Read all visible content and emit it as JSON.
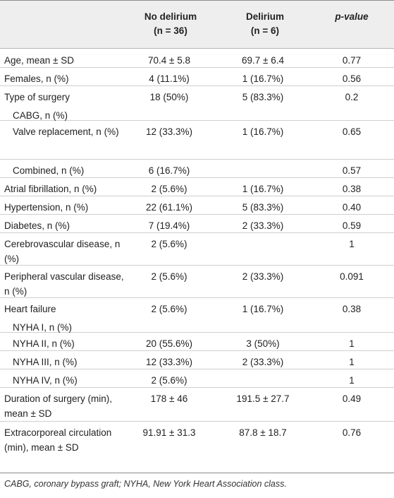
{
  "header": {
    "col1_name": "No delirium",
    "col1_n": "(n = 36)",
    "col2_name": "Delirium",
    "col2_n": "(n = 6)",
    "col3_name": "p-value"
  },
  "rows": [
    {
      "label": "Age, mean ± SD",
      "c1": "70.4 ± 5.8",
      "c2": "69.7 ± 6.4",
      "c3": "0.77"
    },
    {
      "label": "Females, n (%)",
      "c1": "4 (11.1%)",
      "c2": "1 (16.7%)",
      "c3": "0.56"
    },
    {
      "label": "Type of surgery",
      "c1": "18 (50%)",
      "c2": "5 (83.3%)",
      "c3": "0.2"
    },
    {
      "label": "CABG, n (%)",
      "c1": "",
      "c2": "",
      "c3": ""
    },
    {
      "label": "Valve replacement, n (%)",
      "c1": "12 (33.3%)",
      "c2": "1 (16.7%)",
      "c3": "0.65"
    },
    {
      "label": "Combined, n (%)",
      "c1": "6 (16.7%)",
      "c2": "",
      "c3": "0.57"
    },
    {
      "label": "Atrial fibrillation, n (%)",
      "c1": "2 (5.6%)",
      "c2": "1 (16.7%)",
      "c3": "0.38"
    },
    {
      "label": "Hypertension, n (%)",
      "c1": "22 (61.1%)",
      "c2": "5 (83.3%)",
      "c3": "0.40"
    },
    {
      "label": "Diabetes, n (%)",
      "c1": "7 (19.4%)",
      "c2": "2 (33.3%)",
      "c3": "0.59"
    },
    {
      "label": "Cerebrovascular disease, n (%)",
      "c1": "2 (5.6%)",
      "c2": "",
      "c3": "1"
    },
    {
      "label": "Peripheral vascular disease, n (%)",
      "c1": "2 (5.6%)",
      "c2": "2 (33.3%)",
      "c3": "0.091"
    },
    {
      "label": "Heart failure",
      "c1": "2 (5.6%)",
      "c2": "1 (16.7%)",
      "c3": "0.38"
    },
    {
      "label": "NYHA I, n (%)",
      "c1": "",
      "c2": "",
      "c3": ""
    },
    {
      "label": "NYHA II, n (%)",
      "c1": "20 (55.6%)",
      "c2": "3 (50%)",
      "c3": "1"
    },
    {
      "label": "NYHA III, n (%)",
      "c1": "12 (33.3%)",
      "c2": "2 (33.3%)",
      "c3": "1"
    },
    {
      "label": "NYHA IV, n (%)",
      "c1": "2 (5.6%)",
      "c2": "",
      "c3": "1"
    },
    {
      "label": "Duration of surgery (min), mean ± SD",
      "c1": "178 ± 46",
      "c2": "191.5 ± 27.7",
      "c3": "0.49"
    },
    {
      "label": "Extracorporeal circulation (min), mean ± SD",
      "c1": "91.91 ± 31.3",
      "c2": "87.8 ± 18.7",
      "c3": "0.76"
    }
  ],
  "footnote": "CABG, coronary bypass graft; NYHA, New York Heart Association class."
}
